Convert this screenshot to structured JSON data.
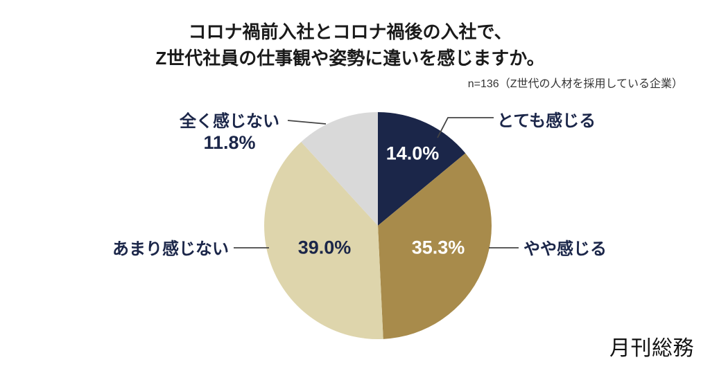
{
  "title": {
    "line1": "コロナ禍前入社とコロナ禍後の入社で、",
    "line2": "Z世代社員の仕事観や姿勢に違いを感じますか。"
  },
  "subtitle": "n=136（Z世代の人材を採用している企業）",
  "logo_text": "月刊総務",
  "colors": {
    "navy": "#1b2649",
    "gold": "#a88b4b",
    "beige": "#ded5ac",
    "gray": "#d9d9d9",
    "label_navy": "#1b2649",
    "leader_line": "#444444",
    "background": "#ffffff"
  },
  "chart_data": {
    "type": "pie",
    "title": "コロナ禍前入社とコロナ禍後の入社で、Z世代社員の仕事観や姿勢に違いを感じますか。",
    "sample_note": "n=136（Z世代の人材を採用している企業）",
    "start_angle": "12時の位置から時計回り",
    "slices": [
      {
        "label": "とても感じる",
        "value": 14.0,
        "display": "14.0%",
        "color": "#1b2649",
        "value_text_color": "#ffffff"
      },
      {
        "label": "やや感じる",
        "value": 35.3,
        "display": "35.3%",
        "color": "#a88b4b",
        "value_text_color": "#ffffff"
      },
      {
        "label": "あまり感じない",
        "value": 39.0,
        "display": "39.0%",
        "color": "#ded5ac",
        "value_text_color": "#1b2649"
      },
      {
        "label": "全く感じない",
        "value": 11.8,
        "display": "11.8%",
        "color": "#d9d9d9",
        "value_text_color": "#1b2649"
      }
    ]
  }
}
